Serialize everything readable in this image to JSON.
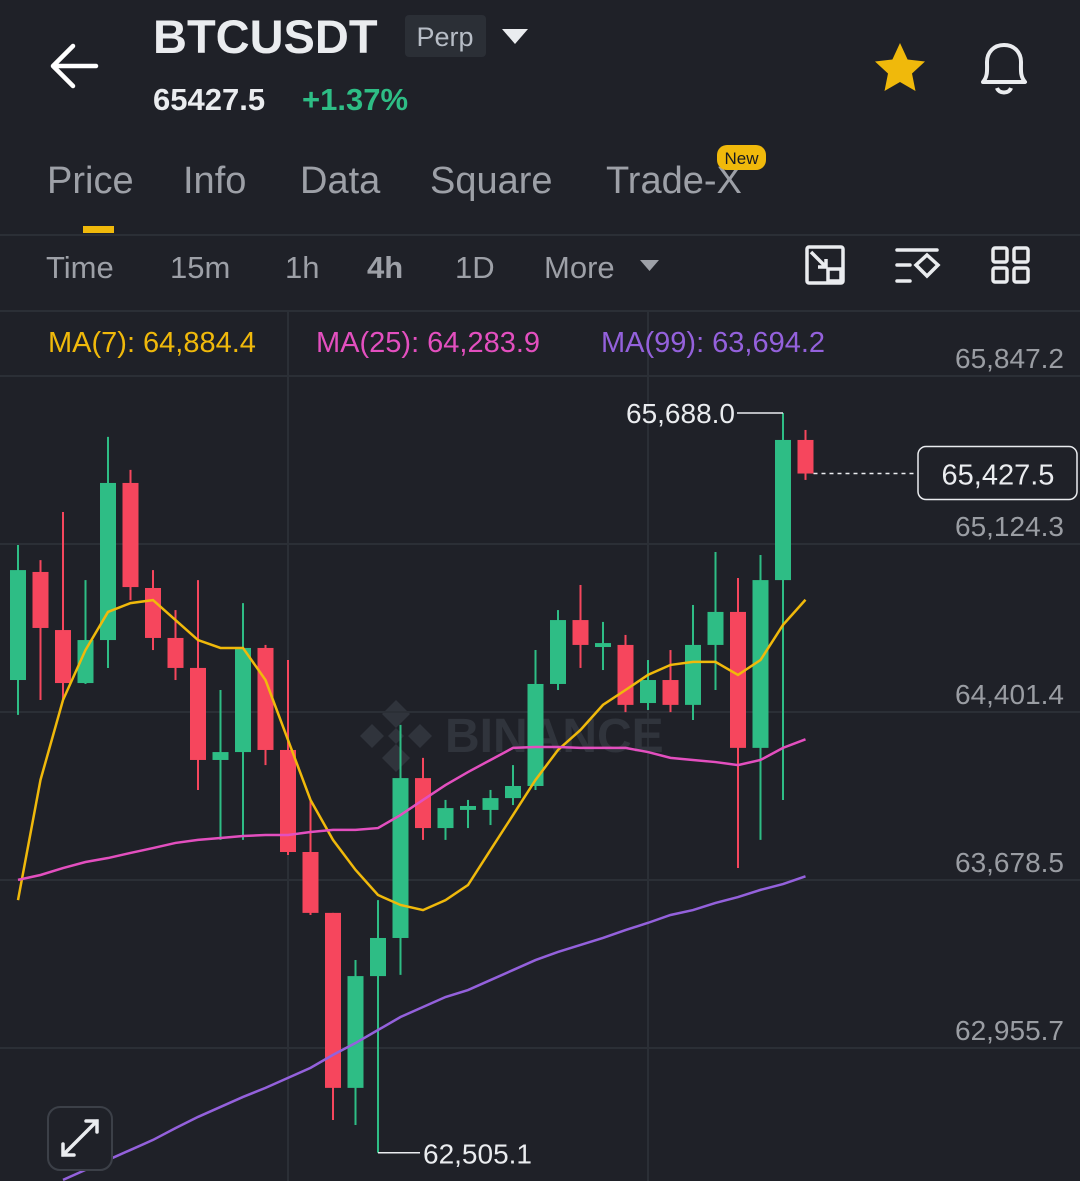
{
  "header": {
    "symbol": "BTCUSDT",
    "contract": "Perp",
    "price": "65427.5",
    "change": "+1.37%"
  },
  "tabs": [
    "Price",
    "Info",
    "Data",
    "Square",
    "Trade-X"
  ],
  "tab_badge": "New",
  "intervals": [
    "Time",
    "15m",
    "1h",
    "4h",
    "1D",
    "More"
  ],
  "watermark": "BINANCE",
  "chart_data": {
    "type": "candlestick",
    "categories": [
      null,
      null,
      null,
      null,
      null,
      null,
      null,
      null,
      null,
      null,
      null,
      null,
      null,
      null,
      null,
      null,
      null,
      null,
      null,
      null,
      null,
      null,
      null,
      null,
      null,
      null,
      null,
      null,
      null,
      null,
      null,
      null,
      null,
      null,
      null,
      null
    ],
    "open": [
      64539,
      65004,
      64754,
      64526,
      64711,
      65387,
      64935,
      64720,
      64591,
      64195,
      64229,
      64677,
      64238,
      63799,
      63537,
      62784,
      63265,
      63429,
      64117,
      63902,
      63980,
      63980,
      64031,
      64083,
      64522,
      64797,
      64681,
      64690,
      64440,
      64539,
      64432,
      64690,
      64832,
      64247,
      64969,
      65572
    ],
    "high": [
      65120,
      65055,
      65262,
      64969,
      65585,
      65443,
      65012,
      64840,
      64969,
      64496,
      64870,
      64690,
      64625,
      64023,
      63537,
      63334,
      63592,
      64346,
      64204,
      64023,
      64023,
      64066,
      64173,
      64668,
      64840,
      64948,
      64789,
      64733,
      64625,
      64668,
      64862,
      65090,
      64978,
      65077,
      65688,
      65615
    ],
    "low": [
      64389,
      64453,
      64453,
      64522,
      64591,
      64883,
      64668,
      64539,
      64066,
      63851,
      63851,
      64173,
      63786,
      63528,
      62646,
      62624,
      62505.1,
      63270,
      63851,
      63851,
      63902,
      63915,
      64001,
      64066,
      64496,
      64591,
      64582,
      64401,
      64410,
      64401,
      64367,
      64496,
      63730,
      63851,
      64023,
      65400
    ],
    "close": [
      65012,
      64763,
      64526,
      64711,
      65387,
      64939,
      64720,
      64591,
      64195,
      64229,
      64677,
      64238,
      63799,
      63537,
      62784,
      63265,
      63429,
      64117,
      63902,
      63988,
      63997,
      64031,
      64083,
      64522,
      64797,
      64690,
      64698,
      64432,
      64539,
      64432,
      64690,
      64832,
      64247,
      64969,
      65572,
      65427.5
    ],
    "up_color": "#2ebd85",
    "down_color": "#f6465d",
    "series": [
      {
        "name": "MA(7):",
        "value_label": "64,884.4",
        "color": "#f0b90b",
        "values": [
          63592,
          64109,
          64453,
          64668,
          64832,
          64870,
          64883,
          64797,
          64711,
          64677,
          64677,
          64539,
          64281,
          64023,
          63851,
          63722,
          63614,
          63571,
          63549,
          63592,
          63657,
          63808,
          63958,
          64109,
          64238,
          64324,
          64432,
          64496,
          64561,
          64604,
          64617,
          64617,
          64561,
          64625,
          64776,
          64884.4
        ]
      },
      {
        "name": "MA(25):",
        "value_label": "64,283.9",
        "color": "#e34fbf",
        "values": [
          63679,
          63700,
          63730,
          63756,
          63773,
          63795,
          63816,
          63838,
          63851,
          63859,
          63868,
          63872,
          63872,
          63885,
          63894,
          63894,
          63902,
          63958,
          64023,
          64087,
          64143,
          64195,
          64247,
          64251,
          64251,
          64247,
          64247,
          64247,
          64229,
          64204,
          64195,
          64186,
          64173,
          64195,
          64247,
          64283.9
        ]
      },
      {
        "name": "MA(99):",
        "value_label": "63,694.2",
        "color": "#9461dc",
        "values": [
          null,
          null,
          62388,
          62431,
          62474,
          62517,
          62560,
          62611,
          62659,
          62702,
          62745,
          62784,
          62827,
          62870,
          62926,
          62977,
          63033,
          63089,
          63132,
          63175,
          63205,
          63248,
          63291,
          63334,
          63369,
          63399,
          63429,
          63463,
          63494,
          63528,
          63549,
          63580,
          63605,
          63636,
          63661,
          63694.2
        ]
      }
    ],
    "ylim": [
      62383.3,
      66122.6
    ],
    "yticks": [
      {
        "value": 65847.2,
        "label": "65,847.2"
      },
      {
        "value": 65124.3,
        "label": "65,124.3"
      },
      {
        "value": 64401.4,
        "label": "64,401.4"
      },
      {
        "value": 63678.5,
        "label": "63,678.5"
      },
      {
        "value": 62955.7,
        "label": "62,955.7"
      }
    ],
    "grid": true,
    "current_price": {
      "value": 65427.5,
      "label": "65,427.5"
    },
    "high_marker": {
      "value": 65688,
      "label": "65,688.0"
    },
    "low_marker": {
      "value": 62505.1,
      "label": "62,505.1"
    }
  }
}
